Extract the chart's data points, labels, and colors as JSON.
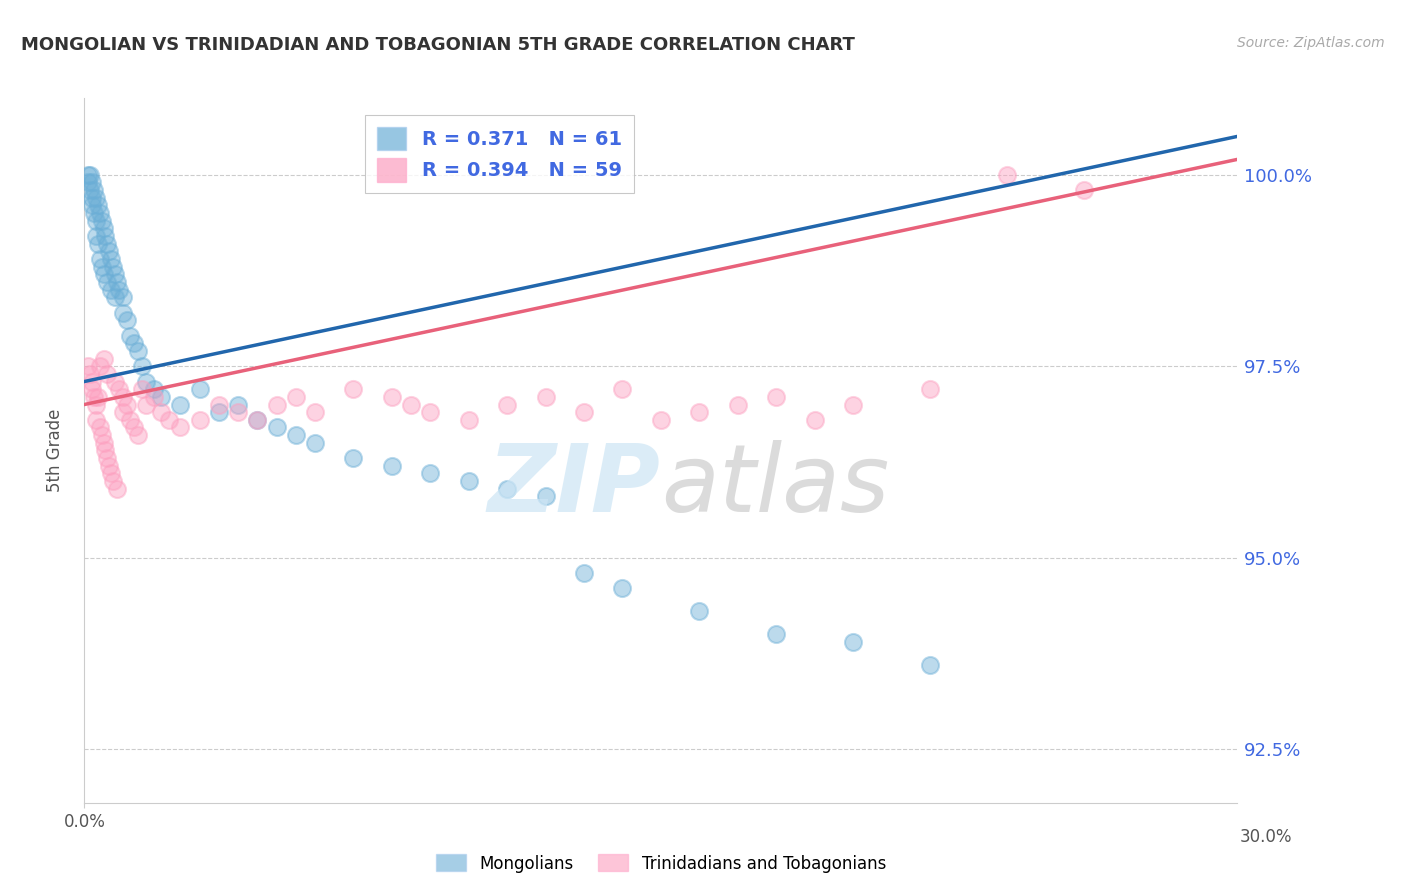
{
  "title": "MONGOLIAN VS TRINIDADIAN AND TOBAGONIAN 5TH GRADE CORRELATION CHART",
  "source": "Source: ZipAtlas.com",
  "ylabel": "5th Grade",
  "y_ticks": [
    92.5,
    95.0,
    97.5,
    100.0
  ],
  "xlim": [
    0.0,
    30.0
  ],
  "ylim": [
    91.8,
    101.0
  ],
  "blue_color": "#6baed6",
  "pink_color": "#fc9fbf",
  "blue_line_color": "#2166ac",
  "pink_line_color": "#e8617a",
  "tick_color": "#4169e1",
  "grid_color": "#cccccc",
  "blue_scatter_x": [
    0.1,
    0.1,
    0.15,
    0.15,
    0.2,
    0.2,
    0.2,
    0.25,
    0.25,
    0.3,
    0.3,
    0.3,
    0.35,
    0.35,
    0.4,
    0.4,
    0.45,
    0.45,
    0.5,
    0.5,
    0.55,
    0.6,
    0.6,
    0.65,
    0.7,
    0.7,
    0.75,
    0.8,
    0.8,
    0.85,
    0.9,
    1.0,
    1.0,
    1.1,
    1.2,
    1.3,
    1.4,
    1.5,
    1.6,
    1.8,
    2.0,
    2.5,
    3.0,
    3.5,
    4.0,
    4.5,
    5.0,
    5.5,
    6.0,
    7.0,
    8.0,
    9.0,
    10.0,
    11.0,
    12.0,
    13.0,
    14.0,
    16.0,
    18.0,
    20.0,
    22.0
  ],
  "blue_scatter_y": [
    100.0,
    99.9,
    100.0,
    99.8,
    99.9,
    99.7,
    99.6,
    99.8,
    99.5,
    99.7,
    99.4,
    99.2,
    99.6,
    99.1,
    99.5,
    98.9,
    99.4,
    98.8,
    99.3,
    98.7,
    99.2,
    99.1,
    98.6,
    99.0,
    98.9,
    98.5,
    98.8,
    98.7,
    98.4,
    98.6,
    98.5,
    98.4,
    98.2,
    98.1,
    97.9,
    97.8,
    97.7,
    97.5,
    97.3,
    97.2,
    97.1,
    97.0,
    97.2,
    96.9,
    97.0,
    96.8,
    96.7,
    96.6,
    96.5,
    96.3,
    96.2,
    96.1,
    96.0,
    95.9,
    95.8,
    94.8,
    94.6,
    94.3,
    94.0,
    93.9,
    93.6
  ],
  "pink_scatter_x": [
    0.1,
    0.15,
    0.2,
    0.2,
    0.25,
    0.3,
    0.3,
    0.35,
    0.4,
    0.4,
    0.45,
    0.5,
    0.5,
    0.55,
    0.6,
    0.6,
    0.65,
    0.7,
    0.75,
    0.8,
    0.85,
    0.9,
    1.0,
    1.0,
    1.1,
    1.2,
    1.3,
    1.4,
    1.5,
    1.6,
    1.8,
    2.0,
    2.2,
    2.5,
    3.0,
    3.5,
    4.0,
    4.5,
    5.0,
    5.5,
    6.0,
    7.0,
    8.0,
    8.5,
    9.0,
    10.0,
    11.0,
    12.0,
    13.0,
    14.0,
    15.0,
    16.0,
    17.0,
    18.0,
    19.0,
    20.0,
    22.0,
    24.0,
    26.0
  ],
  "pink_scatter_y": [
    97.5,
    97.4,
    97.3,
    97.2,
    97.1,
    97.0,
    96.8,
    97.1,
    96.7,
    97.5,
    96.6,
    96.5,
    97.6,
    96.4,
    96.3,
    97.4,
    96.2,
    96.1,
    96.0,
    97.3,
    95.9,
    97.2,
    97.1,
    96.9,
    97.0,
    96.8,
    96.7,
    96.6,
    97.2,
    97.0,
    97.1,
    96.9,
    96.8,
    96.7,
    96.8,
    97.0,
    96.9,
    96.8,
    97.0,
    97.1,
    96.9,
    97.2,
    97.1,
    97.0,
    96.9,
    96.8,
    97.0,
    97.1,
    96.9,
    97.2,
    96.8,
    96.9,
    97.0,
    97.1,
    96.8,
    97.0,
    97.2,
    100.0,
    99.8
  ],
  "blue_line_x0": 0.0,
  "blue_line_x1": 30.0,
  "blue_line_y0": 97.3,
  "blue_line_y1": 100.5,
  "pink_line_x0": 0.0,
  "pink_line_x1": 30.0,
  "pink_line_y0": 97.0,
  "pink_line_y1": 100.2,
  "legend_line1": "R = 0.371   N = 61",
  "legend_line2": "R = 0.394   N = 59",
  "bottom_legend_1": "Mongolians",
  "bottom_legend_2": "Trinidadians and Tobagonians"
}
